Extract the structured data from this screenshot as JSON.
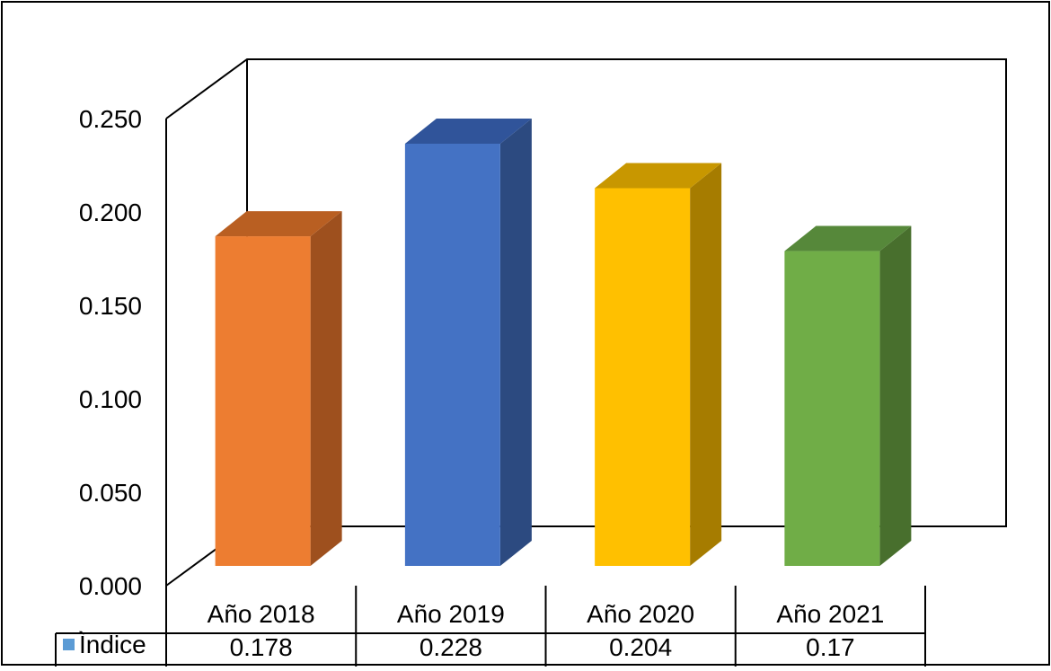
{
  "chart_data": {
    "type": "bar",
    "style": "3d-column with data table",
    "categories": [
      "Año 2018",
      "Año 2019",
      "Año 2020",
      "Año 2021"
    ],
    "series": [
      {
        "name": "Ìndice",
        "values": [
          0.178,
          0.228,
          0.204,
          0.17
        ],
        "value_labels": [
          "0.178",
          "0.228",
          "0.204",
          "0.17"
        ],
        "legend_key_color": "#5B9BD5"
      }
    ],
    "bar_colors": [
      "#ED7D31",
      "#4472C4",
      "#FFC000",
      "#70AD47"
    ],
    "bar_side_colors": [
      "#9E501E",
      "#2C4A80",
      "#A67C00",
      "#486F2D"
    ],
    "bar_top_colors": [
      "#B95F22",
      "#30549A",
      "#C89700",
      "#56883A"
    ],
    "ylim": [
      0,
      0.25
    ],
    "yticks": [
      "0.000",
      "0.050",
      "0.100",
      "0.150",
      "0.200",
      "0.250"
    ],
    "grid": false,
    "legend": "data table",
    "title": "",
    "xlabel": "",
    "ylabel": ""
  }
}
